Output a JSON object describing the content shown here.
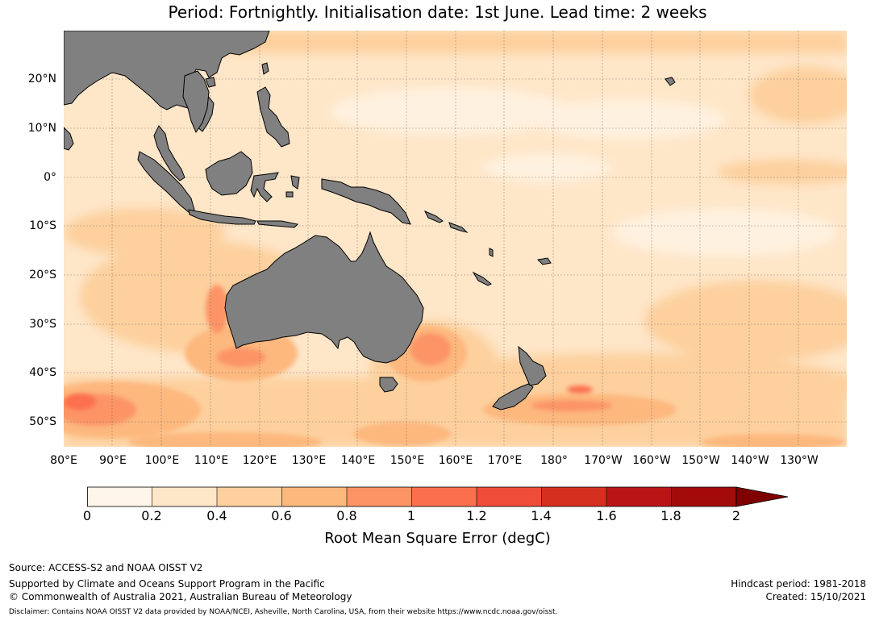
{
  "title": "Period: Fortnightly. Initialisation date: 1st June. Lead time: 2 weeks",
  "map": {
    "lat_labels": [
      "20°N",
      "10°N",
      "0°",
      "10°S",
      "20°S",
      "30°S",
      "40°S",
      "50°S"
    ],
    "lon_labels": [
      "80°E",
      "90°E",
      "100°E",
      "110°E",
      "120°E",
      "130°E",
      "140°E",
      "150°E",
      "160°E",
      "170°E",
      "180°",
      "170°W",
      "160°W",
      "150°W",
      "140°W",
      "130°W"
    ],
    "lat_range": [
      -55,
      30
    ],
    "lon_range": [
      80,
      240
    ],
    "land_color": "#808080",
    "ocean_base_color": "#fee6c8"
  },
  "colorbar": {
    "label": "Root Mean Square Error (degC)",
    "ticks": [
      "0",
      "0.2",
      "0.4",
      "0.6",
      "0.8",
      "1",
      "1.2",
      "1.4",
      "1.6",
      "1.8",
      "2"
    ],
    "colors": [
      "#fff5e8",
      "#fee6c8",
      "#fdd09e",
      "#fdb87e",
      "#fc9466",
      "#fb6f4e",
      "#f04c3a",
      "#d5301f",
      "#bb1414",
      "#a30a0a"
    ],
    "extend_color": "#7f0000"
  },
  "footer": {
    "source": "Source: ACCESS-S2 and NOAA OISST V2",
    "supported": "Supported by Climate and Oceans Support Program in the Pacific",
    "copyright": "© Commonwealth of Australia 2021, Australian Bureau of Meteorology",
    "disclaimer": "Disclaimer: Contains NOAA OISST V2 data provided by NOAA/NCEI, Asheville, North Carolina, USA, from their website https://www.ncdc.noaa.gov/oisst.",
    "hindcast": "Hindcast period: 1981-2018",
    "created": "Created: 15/10/2021"
  }
}
